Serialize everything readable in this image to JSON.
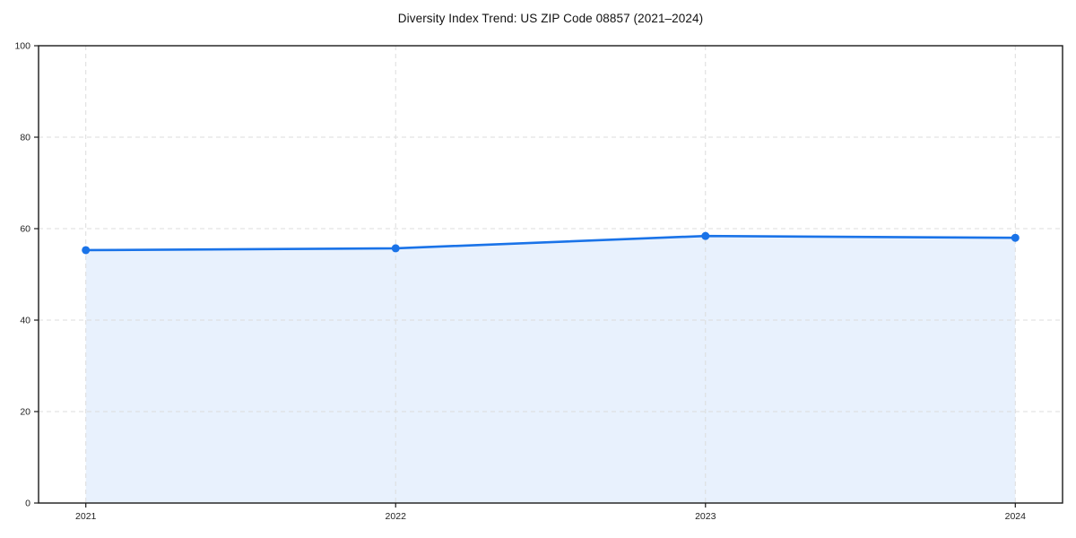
{
  "chart_data": {
    "type": "area",
    "title": "Diversity Index Trend: US ZIP Code 08857 (2021–2024)",
    "categories": [
      "2021",
      "2022",
      "2023",
      "2024"
    ],
    "series": [
      {
        "name": "Diversity Index",
        "values": [
          55.3,
          55.7,
          58.4,
          58.0
        ]
      }
    ],
    "xlabel": "",
    "ylabel": "",
    "ylim": [
      0,
      100
    ],
    "yticks": [
      0,
      20,
      40,
      60,
      80,
      100
    ],
    "grid": "dashed-both-axes",
    "legend_position": "none",
    "colors": {
      "line": "#1a73e8",
      "marker": "#1a73e8",
      "fill": "rgba(26,115,232,0.10)",
      "grid": "#dcdcdc",
      "axis": "#1a1a1a",
      "tick_label": "#222222",
      "title": "#111111",
      "background": "#ffffff"
    }
  }
}
